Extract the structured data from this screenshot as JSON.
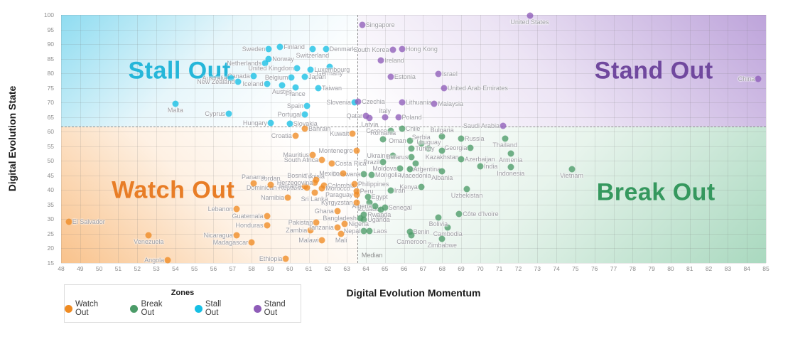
{
  "legend": {
    "title": "Zones"
  },
  "chart_data": {
    "type": "scatter",
    "title": "",
    "xlabel": "Digital Evolution Momentum",
    "ylabel": "Digital Evolution State",
    "xlim": [
      48,
      85
    ],
    "ylim": [
      15,
      100
    ],
    "x_tick_step": 1,
    "y_tick_step": 5,
    "grid": true,
    "legend_position": "bottom-left",
    "median": {
      "x": 63.55,
      "y": 61.7,
      "label": "Median"
    },
    "zones": [
      {
        "id": "watch",
        "label": "Watch Out",
        "dot_color": "#ef8b22",
        "title_color": "#e87d26",
        "title_pos": {
          "x": 15.9,
          "y": 70.8
        }
      },
      {
        "id": "break",
        "label": "Break Out",
        "dot_color": "#4b9b68",
        "title_color": "#35985e",
        "title_pos": {
          "x": 84.4,
          "y": 71.6
        }
      },
      {
        "id": "stall",
        "label": "Stall Out",
        "dot_color": "#16bfe4",
        "title_color": "#25b6d9",
        "title_pos": {
          "x": 16.8,
          "y": 22.6
        }
      },
      {
        "id": "stand",
        "label": "Stand Out",
        "dot_color": "#8e5cb8",
        "title_color": "#70489e",
        "title_pos": {
          "x": 84.1,
          "y": 22.6
        }
      }
    ],
    "points": [
      {
        "name": "Sweden",
        "x": 58.9,
        "y": 88.2,
        "zone": "stall",
        "lp": "left"
      },
      {
        "name": "Finland",
        "x": 59.5,
        "y": 89.0,
        "zone": "stall",
        "lp": "right"
      },
      {
        "name": "Switzerland",
        "x": 61.2,
        "y": 88.2,
        "zone": "stall",
        "lp": "below"
      },
      {
        "name": "Denmark",
        "x": 61.9,
        "y": 88.4,
        "zone": "stall",
        "lp": "right"
      },
      {
        "name": "Norway",
        "x": 58.9,
        "y": 84.8,
        "zone": "stall",
        "lp": "right"
      },
      {
        "name": "Netherlands",
        "x": 58.7,
        "y": 83.4,
        "zone": "stall",
        "lp": "left"
      },
      {
        "name": "United Kingdom",
        "x": 60.4,
        "y": 81.8,
        "zone": "stall",
        "lp": "left"
      },
      {
        "name": "Germany",
        "x": 62.1,
        "y": 82.2,
        "zone": "stall",
        "lp": "below"
      },
      {
        "name": "Luxembourg",
        "x": 61.1,
        "y": 81.2,
        "zone": "stall",
        "lp": "right"
      },
      {
        "name": "Canada",
        "x": 58.1,
        "y": 79.0,
        "zone": "stall",
        "lp": "left"
      },
      {
        "name": "Australia",
        "x": 56.9,
        "y": 78.4,
        "zone": "stall",
        "lp": "left"
      },
      {
        "name": "New Zealand",
        "x": 57.3,
        "y": 77.2,
        "zone": "stall",
        "lp": "left"
      },
      {
        "name": "Iceland",
        "x": 58.8,
        "y": 76.3,
        "zone": "stall",
        "lp": "left"
      },
      {
        "name": "Belgium",
        "x": 60.1,
        "y": 78.6,
        "zone": "stall",
        "lp": "left"
      },
      {
        "name": "Japan",
        "x": 60.8,
        "y": 78.9,
        "zone": "stall",
        "lp": "right"
      },
      {
        "name": "Austria",
        "x": 59.6,
        "y": 75.8,
        "zone": "stall",
        "lp": "below"
      },
      {
        "name": "France",
        "x": 60.3,
        "y": 75.2,
        "zone": "stall",
        "lp": "below"
      },
      {
        "name": "Taiwan",
        "x": 61.5,
        "y": 74.9,
        "zone": "stall",
        "lp": "right"
      },
      {
        "name": "Malta",
        "x": 54.0,
        "y": 69.6,
        "zone": "stall",
        "lp": "below"
      },
      {
        "name": "Cyprus",
        "x": 56.8,
        "y": 66.2,
        "zone": "stall",
        "lp": "left"
      },
      {
        "name": "Spain",
        "x": 60.9,
        "y": 68.8,
        "zone": "stall",
        "lp": "left"
      },
      {
        "name": "Portugal",
        "x": 60.8,
        "y": 66.0,
        "zone": "stall",
        "lp": "left"
      },
      {
        "name": "Hungary",
        "x": 59.0,
        "y": 62.9,
        "zone": "stall",
        "lp": "left"
      },
      {
        "name": "Slovakia",
        "x": 60.0,
        "y": 62.8,
        "zone": "stall",
        "lp": "right"
      },
      {
        "name": "Slovenia",
        "x": 63.4,
        "y": 70.0,
        "zone": "stall",
        "lp": "left"
      },
      {
        "name": "Singapore",
        "x": 63.8,
        "y": 96.7,
        "zone": "stand",
        "lp": "right"
      },
      {
        "name": "United States",
        "x": 72.6,
        "y": 99.7,
        "zone": "stand",
        "lp": "below"
      },
      {
        "name": "South Korea",
        "x": 65.4,
        "y": 88.0,
        "zone": "stand",
        "lp": "left"
      },
      {
        "name": "Hong Kong",
        "x": 65.9,
        "y": 88.2,
        "zone": "stand",
        "lp": "right"
      },
      {
        "name": "Ireland",
        "x": 64.8,
        "y": 84.3,
        "zone": "stand",
        "lp": "right"
      },
      {
        "name": "Israel",
        "x": 67.8,
        "y": 79.9,
        "zone": "stand",
        "lp": "right"
      },
      {
        "name": "Estonia",
        "x": 65.3,
        "y": 78.7,
        "zone": "stand",
        "lp": "right"
      },
      {
        "name": "United Arab Emirates",
        "x": 68.1,
        "y": 74.8,
        "zone": "stand",
        "lp": "right"
      },
      {
        "name": "Czechia",
        "x": 63.6,
        "y": 70.4,
        "zone": "stand",
        "lp": "right"
      },
      {
        "name": "Lithuania",
        "x": 65.9,
        "y": 70.1,
        "zone": "stand",
        "lp": "right"
      },
      {
        "name": "Malaysia",
        "x": 67.6,
        "y": 69.5,
        "zone": "stand",
        "lp": "right"
      },
      {
        "name": "Qatar",
        "x": 64.0,
        "y": 65.4,
        "zone": "stand",
        "lp": "left"
      },
      {
        "name": "Italy",
        "x": 65.0,
        "y": 65.0,
        "zone": "stand",
        "lp": "above"
      },
      {
        "name": "Latvia",
        "x": 64.2,
        "y": 64.6,
        "zone": "stand",
        "lp": "below"
      },
      {
        "name": "Poland",
        "x": 65.7,
        "y": 65.0,
        "zone": "stand",
        "lp": "right"
      },
      {
        "name": "Saudi Arabia",
        "x": 71.2,
        "y": 62.1,
        "zone": "stand",
        "lp": "left"
      },
      {
        "name": "China",
        "x": 84.6,
        "y": 78.0,
        "zone": "stand",
        "lp": "left"
      },
      {
        "name": "Greece",
        "x": 65.3,
        "y": 60.4,
        "zone": "break",
        "lp": "left"
      },
      {
        "name": "Chile",
        "x": 65.9,
        "y": 61.0,
        "zone": "break",
        "lp": "right"
      },
      {
        "name": "Bulgaria",
        "x": 68.0,
        "y": 58.3,
        "zone": "break",
        "lp": "above"
      },
      {
        "name": "Romania",
        "x": 64.9,
        "y": 57.3,
        "zone": "break",
        "lp": "above"
      },
      {
        "name": "Oman",
        "x": 66.3,
        "y": 56.9,
        "zone": "break",
        "lp": "left"
      },
      {
        "name": "Serbia",
        "x": 66.9,
        "y": 55.8,
        "zone": "break",
        "lp": "above"
      },
      {
        "name": "Uruguay",
        "x": 67.3,
        "y": 54.2,
        "zone": "break",
        "lp": "above"
      },
      {
        "name": "Turkey",
        "x": 66.4,
        "y": 54.2,
        "zone": "break",
        "lp": "right"
      },
      {
        "name": "Russia",
        "x": 69.0,
        "y": 57.7,
        "zone": "break",
        "lp": "right"
      },
      {
        "name": "Thailand",
        "x": 71.3,
        "y": 57.7,
        "zone": "break",
        "lp": "below"
      },
      {
        "name": "Georgia",
        "x": 69.5,
        "y": 54.5,
        "zone": "break",
        "lp": "left"
      },
      {
        "name": "Kazakhstan",
        "x": 68.0,
        "y": 53.4,
        "zone": "break",
        "lp": "below"
      },
      {
        "name": "Ukraine",
        "x": 65.4,
        "y": 51.8,
        "zone": "break",
        "lp": "left"
      },
      {
        "name": "Belarus",
        "x": 66.4,
        "y": 51.4,
        "zone": "break",
        "lp": "left"
      },
      {
        "name": "North Macedonia",
        "x": 66.6,
        "y": 49.2,
        "zone": "break",
        "lp": "below",
        "wrap": true
      },
      {
        "name": "Azerbaijan",
        "x": 69.0,
        "y": 50.6,
        "zone": "break",
        "lp": "right"
      },
      {
        "name": "Armenia",
        "x": 71.6,
        "y": 52.6,
        "zone": "break",
        "lp": "below"
      },
      {
        "name": "Brazil",
        "x": 64.9,
        "y": 49.6,
        "zone": "break",
        "lp": "left"
      },
      {
        "name": "Moldova",
        "x": 65.8,
        "y": 47.4,
        "zone": "break",
        "lp": "left"
      },
      {
        "name": "Argentina",
        "x": 66.3,
        "y": 47.2,
        "zone": "break",
        "lp": "right"
      },
      {
        "name": "India",
        "x": 70.0,
        "y": 48.2,
        "zone": "break",
        "lp": "right"
      },
      {
        "name": "Indonesia",
        "x": 71.6,
        "y": 47.8,
        "zone": "break",
        "lp": "below"
      },
      {
        "name": "Botswana",
        "x": 63.9,
        "y": 45.4,
        "zone": "break",
        "lp": "left"
      },
      {
        "name": "Mongolia",
        "x": 64.3,
        "y": 45.1,
        "zone": "break",
        "lp": "right"
      },
      {
        "name": "Albania",
        "x": 68.0,
        "y": 46.5,
        "zone": "break",
        "lp": "below"
      },
      {
        "name": "Kenya",
        "x": 66.9,
        "y": 41.0,
        "zone": "break",
        "lp": "left"
      },
      {
        "name": "Iran",
        "x": 65.3,
        "y": 39.9,
        "zone": "break",
        "lp": "right"
      },
      {
        "name": "Egypt",
        "x": 64.1,
        "y": 37.7,
        "zone": "break",
        "lp": "right"
      },
      {
        "name": "Ecuador",
        "x": 64.2,
        "y": 35.8,
        "zone": "break",
        "lp": "below"
      },
      {
        "name": "Algeria",
        "x": 64.5,
        "y": 34.4,
        "zone": "break",
        "lp": "left"
      },
      {
        "name": "Senegal",
        "x": 65.0,
        "y": 33.9,
        "zone": "break",
        "lp": "right"
      },
      {
        "name": "Iraq",
        "x": 64.8,
        "y": 33.3,
        "zone": "break",
        "lp": "below"
      },
      {
        "name": "Rwanda",
        "x": 63.9,
        "y": 31.5,
        "zone": "break",
        "lp": "right"
      },
      {
        "name": "Uganda",
        "x": 63.9,
        "y": 29.9,
        "zone": "break",
        "lp": "right"
      },
      {
        "name": "Bangladesh",
        "x": 63.7,
        "y": 30.3,
        "zone": "break",
        "lp": "left"
      },
      {
        "name": "Nepal",
        "x": 63.9,
        "y": 26.0,
        "zone": "break",
        "lp": "left"
      },
      {
        "name": "Laos",
        "x": 64.2,
        "y": 26.0,
        "zone": "break",
        "lp": "right"
      },
      {
        "name": "Benin",
        "x": 66.3,
        "y": 25.6,
        "zone": "break",
        "lp": "right"
      },
      {
        "name": "Cameroon",
        "x": 66.4,
        "y": 24.4,
        "zone": "break",
        "lp": "below"
      },
      {
        "name": "Cambodia",
        "x": 68.3,
        "y": 27.1,
        "zone": "break",
        "lp": "below"
      },
      {
        "name": "Zimbabwe",
        "x": 68.0,
        "y": 23.3,
        "zone": "break",
        "lp": "below"
      },
      {
        "name": "Bolivia",
        "x": 67.8,
        "y": 30.7,
        "zone": "break",
        "lp": "below"
      },
      {
        "name": "Côte d'Ivoire",
        "x": 68.9,
        "y": 31.8,
        "zone": "break",
        "lp": "right"
      },
      {
        "name": "Uzbekistan",
        "x": 69.3,
        "y": 40.4,
        "zone": "break",
        "lp": "below"
      },
      {
        "name": "Vietnam",
        "x": 74.8,
        "y": 47.2,
        "zone": "break",
        "lp": "below"
      },
      {
        "name": "El Salvador",
        "x": 48.4,
        "y": 29.1,
        "zone": "watch",
        "lp": "right"
      },
      {
        "name": "Venezuela",
        "x": 52.6,
        "y": 24.5,
        "zone": "watch",
        "lp": "below"
      },
      {
        "name": "Angola",
        "x": 53.6,
        "y": 16.0,
        "zone": "watch",
        "lp": "left"
      },
      {
        "name": "Ethiopia",
        "x": 59.8,
        "y": 16.4,
        "zone": "watch",
        "lp": "left"
      },
      {
        "name": "Madagascar",
        "x": 58.0,
        "y": 22.0,
        "zone": "watch",
        "lp": "left"
      },
      {
        "name": "Nicaragua",
        "x": 57.2,
        "y": 24.5,
        "zone": "watch",
        "lp": "left"
      },
      {
        "name": "Honduras",
        "x": 58.8,
        "y": 28.0,
        "zone": "watch",
        "lp": "left"
      },
      {
        "name": "Guatemala",
        "x": 58.8,
        "y": 31.0,
        "zone": "watch",
        "lp": "left"
      },
      {
        "name": "Lebanon",
        "x": 57.2,
        "y": 33.4,
        "zone": "watch",
        "lp": "left"
      },
      {
        "name": "Malawi",
        "x": 61.7,
        "y": 22.9,
        "zone": "watch",
        "lp": "left"
      },
      {
        "name": "Mali",
        "x": 62.7,
        "y": 24.9,
        "zone": "watch",
        "lp": "below"
      },
      {
        "name": "Zambia",
        "x": 61.1,
        "y": 26.3,
        "zone": "watch",
        "lp": "left"
      },
      {
        "name": "Tanzania",
        "x": 62.5,
        "y": 27.2,
        "zone": "watch",
        "lp": "left"
      },
      {
        "name": "Pakistan",
        "x": 61.4,
        "y": 28.8,
        "zone": "watch",
        "lp": "left"
      },
      {
        "name": "Nigeria",
        "x": 62.9,
        "y": 28.3,
        "zone": "watch",
        "lp": "right"
      },
      {
        "name": "Ghana",
        "x": 62.5,
        "y": 32.8,
        "zone": "watch",
        "lp": "left"
      },
      {
        "name": "Namibia",
        "x": 59.9,
        "y": 37.4,
        "zone": "watch",
        "lp": "left"
      },
      {
        "name": "Sri Lanka",
        "x": 61.3,
        "y": 39.0,
        "zone": "watch",
        "lp": "below"
      },
      {
        "name": "Dominican Republic",
        "x": 60.9,
        "y": 40.7,
        "zone": "watch",
        "lp": "left"
      },
      {
        "name": "Jamaica",
        "x": 60.8,
        "y": 41.3,
        "zone": "watch",
        "lp": "left"
      },
      {
        "name": "Jordan",
        "x": 59.0,
        "y": 41.9,
        "zone": "watch",
        "lp": "above"
      },
      {
        "name": "Panama",
        "x": 58.1,
        "y": 42.3,
        "zone": "watch",
        "lp": "above"
      },
      {
        "name": "Colombia",
        "x": 61.8,
        "y": 41.5,
        "zone": "watch",
        "lp": "right"
      },
      {
        "name": "Morocco",
        "x": 61.7,
        "y": 40.5,
        "zone": "watch",
        "lp": "right"
      },
      {
        "name": "Tunisia",
        "x": 61.3,
        "y": 42.5,
        "zone": "watch",
        "lp": "above"
      },
      {
        "name": "Bosnia & Herzegovina",
        "x": 61.4,
        "y": 43.5,
        "zone": "watch",
        "lp": "left",
        "wrap": true
      },
      {
        "name": "Mexico",
        "x": 62.8,
        "y": 45.8,
        "zone": "watch",
        "lp": "left"
      },
      {
        "name": "Costa Rica",
        "x": 62.2,
        "y": 49.1,
        "zone": "watch",
        "lp": "right"
      },
      {
        "name": "South Africa",
        "x": 61.7,
        "y": 50.3,
        "zone": "watch",
        "lp": "left"
      },
      {
        "name": "Mauritius",
        "x": 61.2,
        "y": 52.1,
        "zone": "watch",
        "lp": "left"
      },
      {
        "name": "Montenegro",
        "x": 63.5,
        "y": 53.5,
        "zone": "watch",
        "lp": "left"
      },
      {
        "name": "Croatia",
        "x": 60.3,
        "y": 58.6,
        "zone": "watch",
        "lp": "left"
      },
      {
        "name": "Bahrain",
        "x": 60.8,
        "y": 61.1,
        "zone": "watch",
        "lp": "right"
      },
      {
        "name": "Kuwait",
        "x": 63.3,
        "y": 59.3,
        "zone": "watch",
        "lp": "left"
      },
      {
        "name": "Paraguay",
        "x": 63.5,
        "y": 38.3,
        "zone": "watch",
        "lp": "left"
      },
      {
        "name": "Kyrgyzstan",
        "x": 63.5,
        "y": 35.7,
        "zone": "watch",
        "lp": "left"
      },
      {
        "name": "Peru",
        "x": 63.5,
        "y": 39.7,
        "zone": "watch",
        "lp": "right"
      },
      {
        "name": "Philippines",
        "x": 63.4,
        "y": 42.1,
        "zone": "watch",
        "lp": "right"
      }
    ]
  }
}
